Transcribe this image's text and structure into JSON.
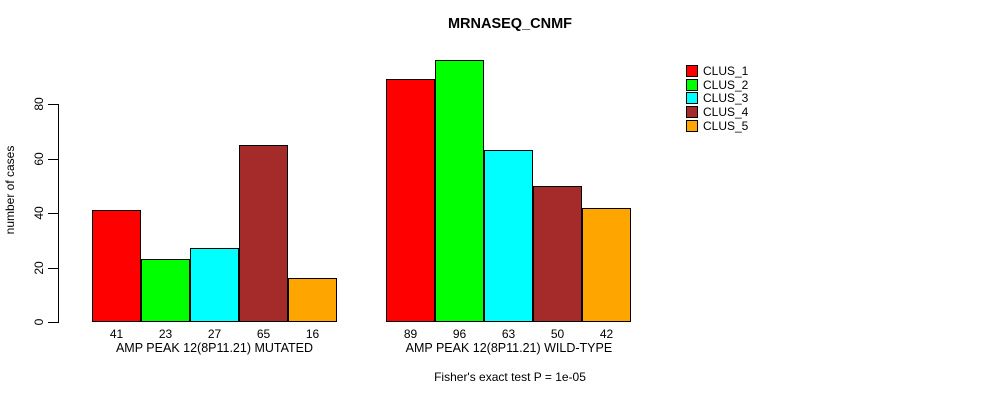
{
  "chart_data": {
    "type": "bar",
    "title": "MRNASEQ_CNMF",
    "xlabel": "",
    "ylabel": "number of cases",
    "ylim": [
      0,
      96
    ],
    "yticks": [
      0,
      20,
      40,
      60,
      80
    ],
    "grid": false,
    "legend_position": "right",
    "categories": [
      "AMP PEAK 12(8P11.21) MUTATED",
      "AMP PEAK 12(8P11.21) WILD-TYPE"
    ],
    "series": [
      {
        "name": "CLUS_1",
        "color": "#FF0000",
        "values": [
          41,
          89
        ]
      },
      {
        "name": "CLUS_2",
        "color": "#00FF00",
        "values": [
          23,
          96
        ]
      },
      {
        "name": "CLUS_3",
        "color": "#00FFFF",
        "values": [
          27,
          63
        ]
      },
      {
        "name": "CLUS_4",
        "color": "#A52A2A",
        "values": [
          65,
          50
        ]
      },
      {
        "name": "CLUS_5",
        "color": "#FFA500",
        "values": [
          16,
          42
        ]
      }
    ],
    "bar_value_labels": [
      [
        "41",
        "23",
        "27",
        "65",
        "16"
      ],
      [
        "89",
        "96",
        "63",
        "50",
        "42"
      ]
    ],
    "annotation": "Fisher's exact test P = 1e-05"
  }
}
